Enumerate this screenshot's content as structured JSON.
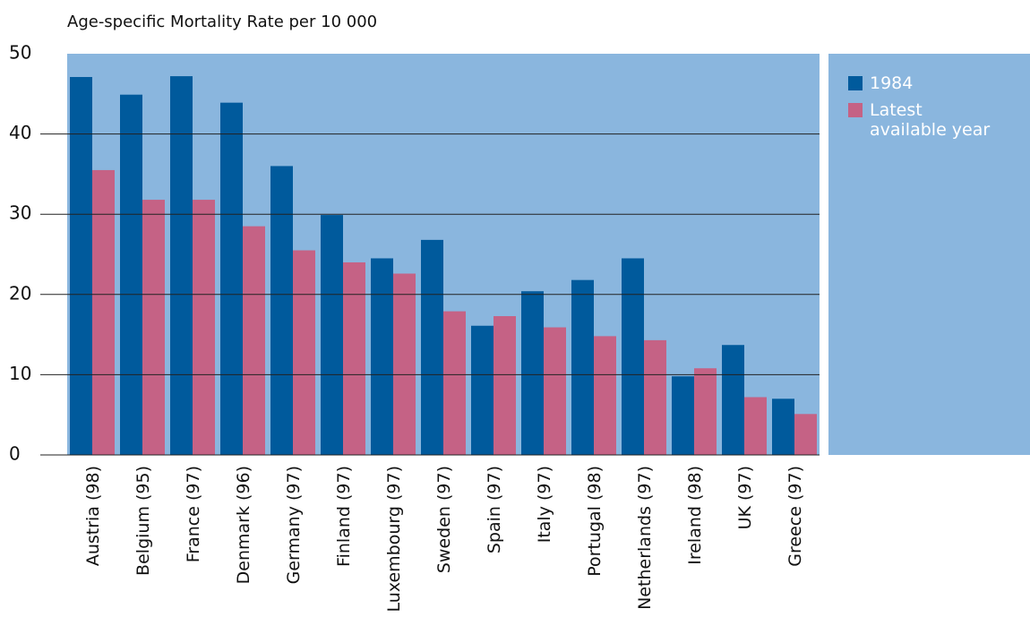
{
  "chart_data": {
    "type": "bar",
    "title": "Age-specific Mortality Rate per 10 000",
    "categories": [
      "Austria (98)",
      "Belgium (95)",
      "France (97)",
      "Denmark (96)",
      "Germany (97)",
      "Finland (97)",
      "Luxembourg (97)",
      "Sweden (97)",
      "Spain (97)",
      "Italy (97)",
      "Portugal (98)",
      "Netherlands (97)",
      "Ireland (98)",
      "UK (97)",
      "Greece (97)"
    ],
    "series": [
      {
        "name": "1984",
        "color": "#005a9c",
        "values": [
          47.1,
          44.9,
          47.2,
          43.9,
          36.0,
          29.9,
          24.5,
          26.8,
          16.1,
          20.4,
          21.8,
          24.5,
          9.8,
          13.7,
          7.0
        ]
      },
      {
        "name": "Latest available year",
        "color": "#c56285",
        "values": [
          35.5,
          31.8,
          31.8,
          28.5,
          25.5,
          24.0,
          22.6,
          17.9,
          17.3,
          15.9,
          14.8,
          14.3,
          10.8,
          7.2,
          5.1
        ]
      }
    ],
    "ylim": [
      0,
      50
    ],
    "yticks": [
      0,
      10,
      20,
      30,
      40,
      50
    ],
    "grid": true,
    "background": "#8ab6de"
  }
}
